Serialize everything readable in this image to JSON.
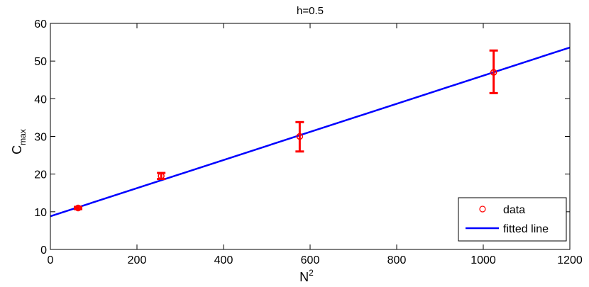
{
  "chart_data": {
    "type": "scatter",
    "title": "h=0.5",
    "xlabel": "N",
    "xlabel_sup": "2",
    "ylabel": "C",
    "ylabel_sub": "max",
    "xlim": [
      0,
      1200
    ],
    "ylim": [
      0,
      60
    ],
    "xticks": [
      0,
      200,
      400,
      600,
      800,
      1000,
      1200
    ],
    "yticks": [
      0,
      10,
      20,
      30,
      40,
      50,
      60
    ],
    "grid": false,
    "legend_position": "bottom-right",
    "series": [
      {
        "name": "data",
        "kind": "points_with_errorbars",
        "color": "#ff0000",
        "marker": "circle",
        "points": [
          {
            "x": 64,
            "y": 11.0,
            "err_low": 0.3,
            "err_high": 0.3
          },
          {
            "x": 256,
            "y": 19.5,
            "err_low": 0.8,
            "err_high": 0.8
          },
          {
            "x": 576,
            "y": 30.0,
            "err_low": 4.0,
            "err_high": 3.8
          },
          {
            "x": 1024,
            "y": 47.0,
            "err_low": 5.5,
            "err_high": 5.8
          }
        ]
      },
      {
        "name": "fitted line",
        "kind": "line",
        "color": "#0000ff",
        "x": [
          0,
          1200
        ],
        "y": [
          8.8,
          53.6
        ]
      }
    ]
  }
}
